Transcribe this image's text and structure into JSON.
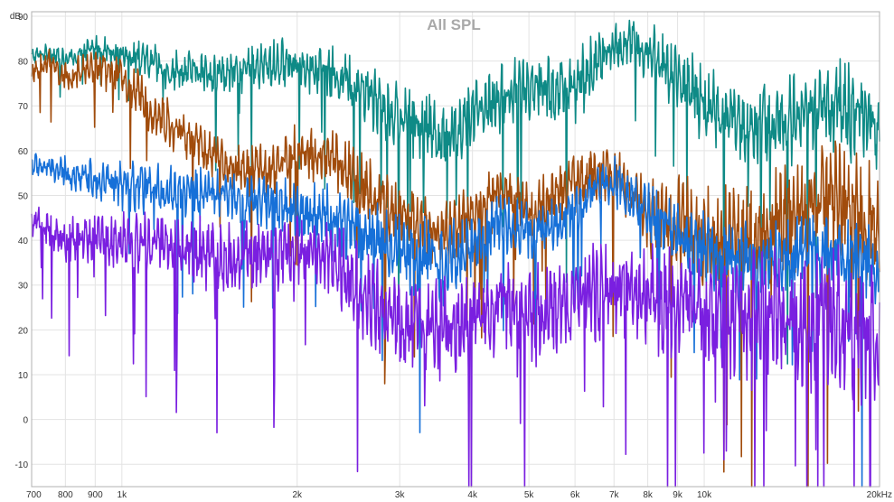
{
  "chart_data": {
    "type": "line",
    "title": "All SPL",
    "ylabel": "dB",
    "xlabel": "",
    "x_scale": "log",
    "xlim": [
      700,
      20000
    ],
    "ylim": [
      -15,
      91
    ],
    "grid": true,
    "y_ticks": [
      90,
      80,
      70,
      60,
      50,
      40,
      30,
      20,
      10,
      0,
      -10
    ],
    "x_ticks": [
      {
        "value": 700,
        "label": "700"
      },
      {
        "value": 800,
        "label": "800"
      },
      {
        "value": 900,
        "label": "900"
      },
      {
        "value": 1000,
        "label": "1k"
      },
      {
        "value": 2000,
        "label": "2k"
      },
      {
        "value": 3000,
        "label": "3k"
      },
      {
        "value": 4000,
        "label": "4k"
      },
      {
        "value": 5000,
        "label": "5k"
      },
      {
        "value": 6000,
        "label": "6k"
      },
      {
        "value": 7000,
        "label": "7k"
      },
      {
        "value": 8000,
        "label": "8k"
      },
      {
        "value": 9000,
        "label": "9k"
      },
      {
        "value": 10000,
        "label": "10k"
      },
      {
        "value": 20000,
        "label": "20kHz"
      }
    ],
    "series": [
      {
        "color": "#0e8a86",
        "x": [
          700,
          750,
          800,
          900,
          1000,
          1200,
          1500,
          1800,
          2000,
          2300,
          2600,
          3000,
          3300,
          3600,
          4000,
          4500,
          5000,
          5500,
          6000,
          6500,
          7000,
          7500,
          8000,
          9000,
          10000,
          12000,
          14000,
          16000,
          18000,
          20000
        ],
        "y": [
          81,
          82,
          80,
          83,
          82,
          78,
          77,
          79,
          80,
          77,
          74,
          67,
          66,
          62,
          68,
          72,
          75,
          73,
          74,
          79,
          83,
          84,
          82,
          76,
          70,
          65,
          67,
          71,
          68,
          66
        ],
        "amp": [
          2,
          2,
          3,
          3,
          4,
          5,
          5,
          6,
          6,
          7,
          8,
          9,
          9,
          9,
          8,
          8,
          9,
          9,
          10,
          8,
          6,
          6,
          7,
          9,
          10,
          11,
          11,
          12,
          12,
          12
        ]
      },
      {
        "color": "#a14c0c",
        "x": [
          700,
          750,
          800,
          900,
          1000,
          1200,
          1500,
          1800,
          2000,
          2300,
          2600,
          3000,
          3300,
          3600,
          4000,
          4500,
          5000,
          5500,
          6000,
          6500,
          7000,
          7500,
          8000,
          9000,
          10000,
          12000,
          14000,
          16000,
          18000,
          20000
        ],
        "y": [
          77,
          80,
          76,
          79,
          76,
          66,
          57,
          55,
          60,
          58,
          52,
          45,
          43,
          41,
          46,
          52,
          47,
          49,
          53,
          55,
          54,
          50,
          46,
          44,
          40,
          40,
          45,
          50,
          47,
          42
        ],
        "amp": [
          3,
          3,
          4,
          4,
          6,
          6,
          6,
          7,
          7,
          7,
          8,
          8,
          8,
          8,
          7,
          6,
          7,
          8,
          7,
          6,
          7,
          8,
          10,
          12,
          14,
          14,
          14,
          14,
          14,
          14
        ]
      },
      {
        "color": "#1670d8",
        "x": [
          700,
          750,
          800,
          900,
          1000,
          1200,
          1500,
          1800,
          2000,
          2300,
          2600,
          3000,
          3300,
          3600,
          4000,
          4500,
          5000,
          5500,
          6000,
          6500,
          7000,
          7500,
          8000,
          9000,
          10000,
          12000,
          14000,
          16000,
          18000,
          20000
        ],
        "y": [
          57,
          56,
          55,
          54,
          52,
          51,
          50,
          48,
          47,
          45,
          42,
          38,
          36,
          35,
          40,
          44,
          42,
          43,
          46,
          52,
          53,
          50,
          46,
          41,
          38,
          36,
          37,
          38,
          36,
          34
        ],
        "amp": [
          3,
          3,
          4,
          5,
          6,
          6,
          6,
          7,
          7,
          8,
          9,
          10,
          11,
          10,
          8,
          7,
          7,
          7,
          6,
          5,
          6,
          6,
          7,
          8,
          9,
          9,
          9,
          10,
          10,
          10
        ]
      },
      {
        "color": "#7a1fe0",
        "x": [
          700,
          750,
          800,
          900,
          1000,
          1200,
          1500,
          1800,
          2000,
          2300,
          2600,
          3000,
          3300,
          3600,
          4000,
          4500,
          5000,
          5500,
          6000,
          6500,
          7000,
          7500,
          8000,
          9000,
          10000,
          12000,
          14000,
          16000,
          18000,
          20000
        ],
        "y": [
          44,
          42,
          40,
          41,
          40,
          39,
          36,
          37,
          38,
          35,
          28,
          22,
          20,
          21,
          22,
          26,
          23,
          24,
          26,
          28,
          30,
          29,
          27,
          26,
          24,
          22,
          22,
          23,
          21,
          20
        ],
        "amp": [
          4,
          5,
          6,
          6,
          7,
          8,
          9,
          9,
          9,
          10,
          11,
          12,
          12,
          12,
          12,
          11,
          12,
          12,
          12,
          12,
          12,
          12,
          13,
          14,
          15,
          16,
          17,
          18,
          18,
          18
        ]
      }
    ]
  }
}
